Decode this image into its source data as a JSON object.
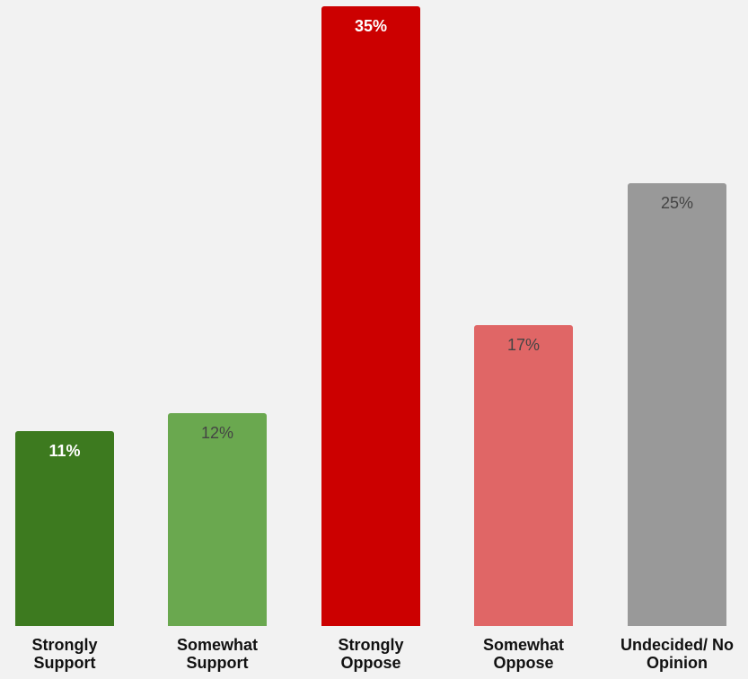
{
  "chart_data": {
    "type": "bar",
    "categories": [
      [
        "Strongly",
        "Support"
      ],
      [
        "Somewhat",
        "Support"
      ],
      [
        "Strongly",
        "Oppose"
      ],
      [
        "Somewhat",
        "Oppose"
      ],
      [
        "Undecided/ No",
        "Opinion"
      ]
    ],
    "values": [
      11,
      12,
      35,
      17,
      25
    ],
    "value_labels": [
      "11%",
      "12%",
      "35%",
      "17%",
      "25%"
    ],
    "colors": [
      "#3d7a1f",
      "#6aa84f",
      "#cc0000",
      "#e06666",
      "#999999"
    ],
    "value_label_styles": [
      "bold-white",
      "light-dark",
      "bold-white",
      "light-dark",
      "light-dark"
    ],
    "ylim": [
      0,
      35
    ],
    "grid": false,
    "legend": "none"
  }
}
